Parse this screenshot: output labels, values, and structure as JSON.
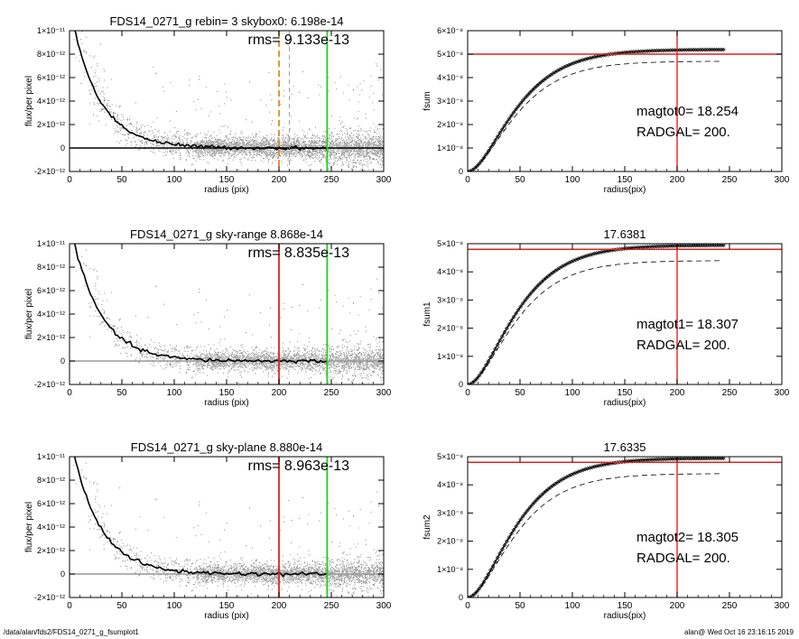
{
  "footer": {
    "path": "/data/alan/fds2/FDS14_0271_g_fsumplot1",
    "stamp": "alan@  Wed Oct 16 23:16:15 2019"
  },
  "chart_data": [
    {
      "type": "scatter",
      "title": "FDS14_0271_g rebin= 3    skybox0:  6.198e-14",
      "annotation": "rms= 9.133e-13",
      "xlabel": "radius (pix)",
      "ylabel": "flux/per pixel",
      "xlim": [
        0,
        300
      ],
      "ylim": [
        -2e-12,
        1e-11
      ],
      "xticks": [
        "0",
        "50",
        "100",
        "150",
        "200",
        "250",
        "300"
      ],
      "yticks": [
        "-2×10⁻¹²",
        "0",
        "2×10⁻¹²",
        "4×10⁻¹²",
        "6×10⁻¹²",
        "8×10⁻¹²",
        "1×10⁻¹¹"
      ],
      "vlines": [
        {
          "x": 200,
          "color": "#e08a1e",
          "style": "dashed"
        },
        {
          "x": 210,
          "color": "#8a8a8a",
          "style": "dashed-thin"
        },
        {
          "x": 246,
          "color": "#22cc22",
          "style": "solid"
        }
      ],
      "profile_scale_length": 27,
      "profile_peak": 1.2e-11
    },
    {
      "type": "line",
      "title": "",
      "xlabel": "radius(pix)",
      "ylabel": "fsum",
      "xlim": [
        0,
        300
      ],
      "ylim": [
        0,
        6e-08
      ],
      "xticks": [
        "0",
        "50",
        "100",
        "150",
        "200",
        "250",
        "300"
      ],
      "yticks": [
        "0",
        "1×10⁻⁸",
        "2×10⁻⁸",
        "3×10⁻⁸",
        "4×10⁻⁸",
        "5×10⁻⁸",
        "6×10⁻⁸"
      ],
      "hline": 5e-08,
      "vline": 200,
      "line_color": "#dd2222",
      "asymptote": 5.2e-08,
      "dashed_asymptote": 4.7e-08,
      "curve_end": 245,
      "labels": [
        "magtot0=  18.254",
        "RADGAL=    200."
      ]
    },
    {
      "type": "scatter",
      "title": "FDS14_0271_g sky-range  8.868e-14",
      "annotation": "rms= 8.835e-13",
      "xlabel": "radius (pix)",
      "ylabel": "flux/per pixel",
      "xlim": [
        0,
        300
      ],
      "ylim": [
        -2e-12,
        1e-11
      ],
      "xticks": [
        "0",
        "50",
        "100",
        "150",
        "200",
        "250",
        "300"
      ],
      "yticks": [
        "-2×10⁻¹²",
        "0",
        "2×10⁻¹²",
        "4×10⁻¹²",
        "6×10⁻¹²",
        "8×10⁻¹²",
        "1×10⁻¹¹"
      ],
      "vlines": [
        {
          "x": 200,
          "color": "#dd2222",
          "style": "solid"
        },
        {
          "x": 246,
          "color": "#22cc22",
          "style": "solid"
        }
      ],
      "profile_scale_length": 27,
      "profile_peak": 1.2e-11
    },
    {
      "type": "line",
      "title": "17.6381",
      "xlabel": "radius(pix)",
      "ylabel": "fsum1",
      "xlim": [
        0,
        300
      ],
      "ylim": [
        0,
        5e-08
      ],
      "xticks": [
        "0",
        "50",
        "100",
        "150",
        "200",
        "250",
        "300"
      ],
      "yticks": [
        "0",
        "1×10⁻⁸",
        "2×10⁻⁸",
        "3×10⁻⁸",
        "4×10⁻⁸",
        "5×10⁻⁸"
      ],
      "hline": 4.8e-08,
      "vline": 200,
      "line_color": "#dd2222",
      "asymptote": 4.95e-08,
      "dashed_asymptote": 4.4e-08,
      "curve_end": 245,
      "labels": [
        "magtot1=  18.307",
        "RADGAL=    200."
      ]
    },
    {
      "type": "scatter",
      "title": "FDS14_0271_g sky-plane  8.880e-14",
      "annotation": "rms= 8.963e-13",
      "xlabel": "radius (pix)",
      "ylabel": "flux/per pixel",
      "xlim": [
        0,
        300
      ],
      "ylim": [
        -2e-12,
        1e-11
      ],
      "xticks": [
        "0",
        "50",
        "100",
        "150",
        "200",
        "250",
        "300"
      ],
      "yticks": [
        "-2×10⁻¹²",
        "0",
        "2×10⁻¹²",
        "4×10⁻¹²",
        "6×10⁻¹²",
        "8×10⁻¹²",
        "1×10⁻¹¹"
      ],
      "vlines": [
        {
          "x": 200,
          "color": "#dd2222",
          "style": "solid"
        },
        {
          "x": 246,
          "color": "#22cc22",
          "style": "solid"
        }
      ],
      "profile_scale_length": 27,
      "profile_peak": 1.2e-11
    },
    {
      "type": "line",
      "title": "17.6335",
      "xlabel": "radius(pix)",
      "ylabel": "fsum2",
      "xlim": [
        0,
        300
      ],
      "ylim": [
        0,
        5e-08
      ],
      "xticks": [
        "0",
        "50",
        "100",
        "150",
        "200",
        "250",
        "300"
      ],
      "yticks": [
        "0",
        "1×10⁻⁸",
        "2×10⁻⁸",
        "3×10⁻⁸",
        "4×10⁻⁸",
        "5×10⁻⁸"
      ],
      "hline": 4.8e-08,
      "vline": 200,
      "line_color": "#dd2222",
      "asymptote": 4.95e-08,
      "dashed_asymptote": 4.4e-08,
      "curve_end": 245,
      "labels": [
        "magtot2=  18.305",
        "RADGAL=    200."
      ]
    }
  ]
}
